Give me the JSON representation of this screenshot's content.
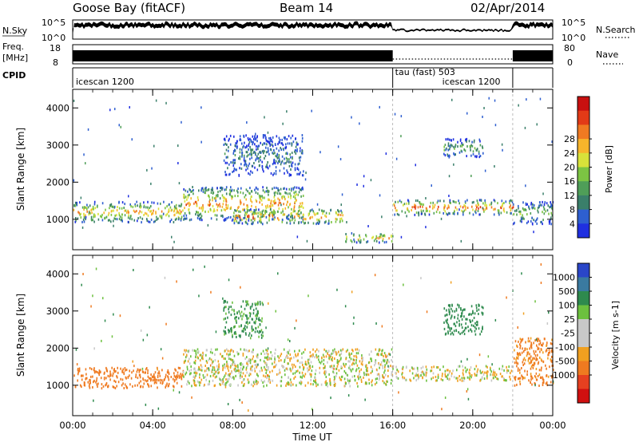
{
  "header": {
    "station": "Goose Bay (fitACF)",
    "beam": "Beam 14",
    "date": "02/Apr/2014"
  },
  "strip_panels": {
    "nsky": {
      "label": "N.Sky",
      "tick_top": "10^5",
      "tick_bottom": "10^0",
      "right_label": "N.Search",
      "right_tick_top": "10^5",
      "right_tick_bottom": "10^0"
    },
    "freq": {
      "label_line1": "Freq.",
      "label_line2": "[MHz]",
      "tick_top": "18",
      "tick_bottom": "8",
      "right_label": "Nave",
      "right_tick_top": "80",
      "right_tick_bottom": "0"
    },
    "cpid": {
      "label": "CPID",
      "segments": [
        {
          "label": "icescan 1200",
          "start_hour": 0,
          "end_hour": 16
        },
        {
          "label": "tau (fast) 503",
          "start_hour": 16,
          "end_hour": 22
        },
        {
          "label": "icescan 1200",
          "start_hour": 22,
          "end_hour": 24
        }
      ]
    }
  },
  "time_axis": {
    "label": "Time UT",
    "ticks": [
      "00:00",
      "04:00",
      "08:00",
      "12:00",
      "16:00",
      "20:00",
      "00:00"
    ]
  },
  "colors": {
    "power_scale": [
      "#1f2fe0",
      "#2e5fd0",
      "#3a7f6a",
      "#4f9e58",
      "#7cc443",
      "#d8e23a",
      "#f7b52b",
      "#f07a22",
      "#e23a17",
      "#c81010"
    ],
    "velocity_scale": [
      "#2a46c8",
      "#3a7aa0",
      "#2e8a4e",
      "#6cc03e",
      "#c8c8c8",
      "#c8c8c8",
      "#f0a020",
      "#ef7a20",
      "#e64020",
      "#d01010"
    ]
  },
  "chart_data": [
    {
      "type": "heatmap",
      "title": "Power",
      "ylabel": "Slant Range [km]",
      "xlabel": "Time UT",
      "xlim": [
        0,
        24
      ],
      "ylim": [
        180,
        4500
      ],
      "yticks": [
        "1000",
        "2000",
        "3000",
        "4000"
      ],
      "colorbar": {
        "label": "Power [dB]",
        "ticks": [
          "4",
          "8",
          "12",
          "16",
          "20",
          "24",
          "28"
        ],
        "range": [
          0,
          32
        ]
      },
      "echo_regions": [
        {
          "start_hour": 0.0,
          "end_hour": 5.5,
          "range_low_km": 950,
          "range_high_km": 1500,
          "peak_db": 22
        },
        {
          "start_hour": 5.5,
          "end_hour": 11.5,
          "range_low_km": 1000,
          "range_high_km": 1900,
          "peak_db": 24
        },
        {
          "start_hour": 8.0,
          "end_hour": 13.5,
          "range_low_km": 900,
          "range_high_km": 1300,
          "peak_db": 26
        },
        {
          "start_hour": 7.5,
          "end_hour": 11.5,
          "range_low_km": 2200,
          "range_high_km": 3300,
          "peak_db": 8
        },
        {
          "start_hour": 13.5,
          "end_hour": 16.0,
          "range_low_km": 400,
          "range_high_km": 650,
          "peak_db": 22
        },
        {
          "start_hour": 16.0,
          "end_hour": 22.0,
          "range_low_km": 1150,
          "range_high_km": 1550,
          "peak_db": 26
        },
        {
          "start_hour": 18.5,
          "end_hour": 20.5,
          "range_low_km": 2700,
          "range_high_km": 3200,
          "peak_db": 12
        },
        {
          "start_hour": 22.0,
          "end_hour": 24.0,
          "range_low_km": 900,
          "range_high_km": 1500,
          "peak_db": 14
        }
      ]
    },
    {
      "type": "heatmap",
      "title": "Velocity",
      "ylabel": "Slant Range [km]",
      "xlabel": "Time UT",
      "xlim": [
        0,
        24
      ],
      "ylim": [
        180,
        4500
      ],
      "yticks": [
        "1000",
        "2000",
        "3000",
        "4000"
      ],
      "colorbar": {
        "label": "Velocity [m s-1]",
        "ticks": [
          "1000",
          "500",
          "100",
          "25",
          "-25",
          "-100",
          "-500",
          "-1000"
        ]
      },
      "echo_regions": [
        {
          "start_hour": 0.0,
          "end_hour": 5.5,
          "range_low_km": 950,
          "range_high_km": 1500,
          "velocity_ms": -300
        },
        {
          "start_hour": 5.5,
          "end_hour": 16.0,
          "range_low_km": 1000,
          "range_high_km": 2000,
          "velocity_ms": 0
        },
        {
          "start_hour": 7.5,
          "end_hour": 9.5,
          "range_low_km": 2300,
          "range_high_km": 3300,
          "velocity_ms": 150
        },
        {
          "start_hour": 16.0,
          "end_hour": 22.0,
          "range_low_km": 1150,
          "range_high_km": 1550,
          "velocity_ms": 0
        },
        {
          "start_hour": 18.5,
          "end_hour": 20.5,
          "range_low_km": 2400,
          "range_high_km": 3200,
          "velocity_ms": 200
        },
        {
          "start_hour": 22.0,
          "end_hour": 24.0,
          "range_low_km": 1000,
          "range_high_km": 2300,
          "velocity_ms": -150
        }
      ]
    }
  ]
}
